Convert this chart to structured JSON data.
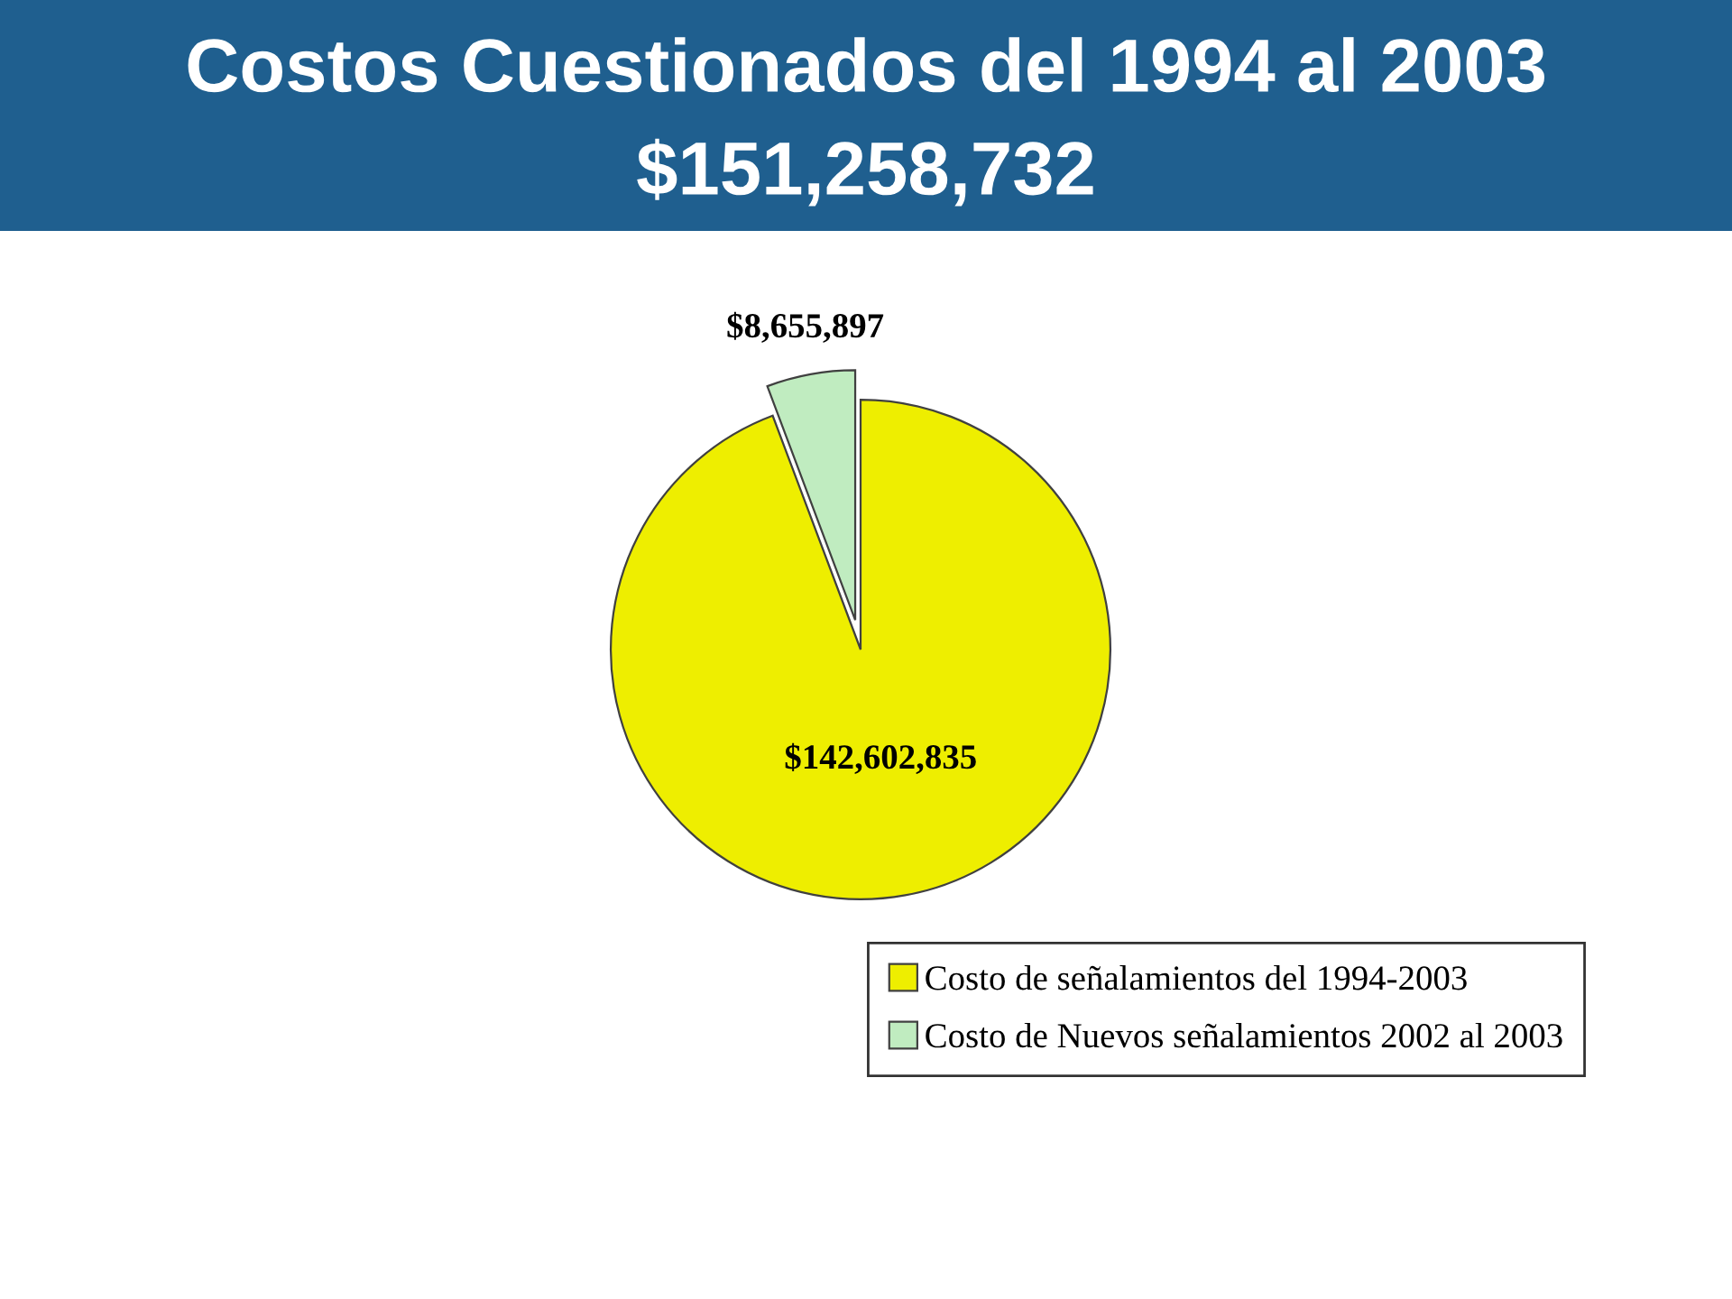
{
  "chart_data": {
    "type": "pie",
    "title": "Costos Cuestionados del 1994 al 2003",
    "subtitle": "$151,258,732",
    "categories": [
      "Costo de señalamientos del 1994-2003",
      "Costo de Nuevos señalamientos 2002 al 2003"
    ],
    "values": [
      142602835,
      8655897
    ],
    "colors": [
      "#eeee00",
      "#c0ecc0"
    ],
    "value_labels": [
      "$142,602,835",
      "$8,655,897"
    ],
    "legend": "bottom right"
  }
}
